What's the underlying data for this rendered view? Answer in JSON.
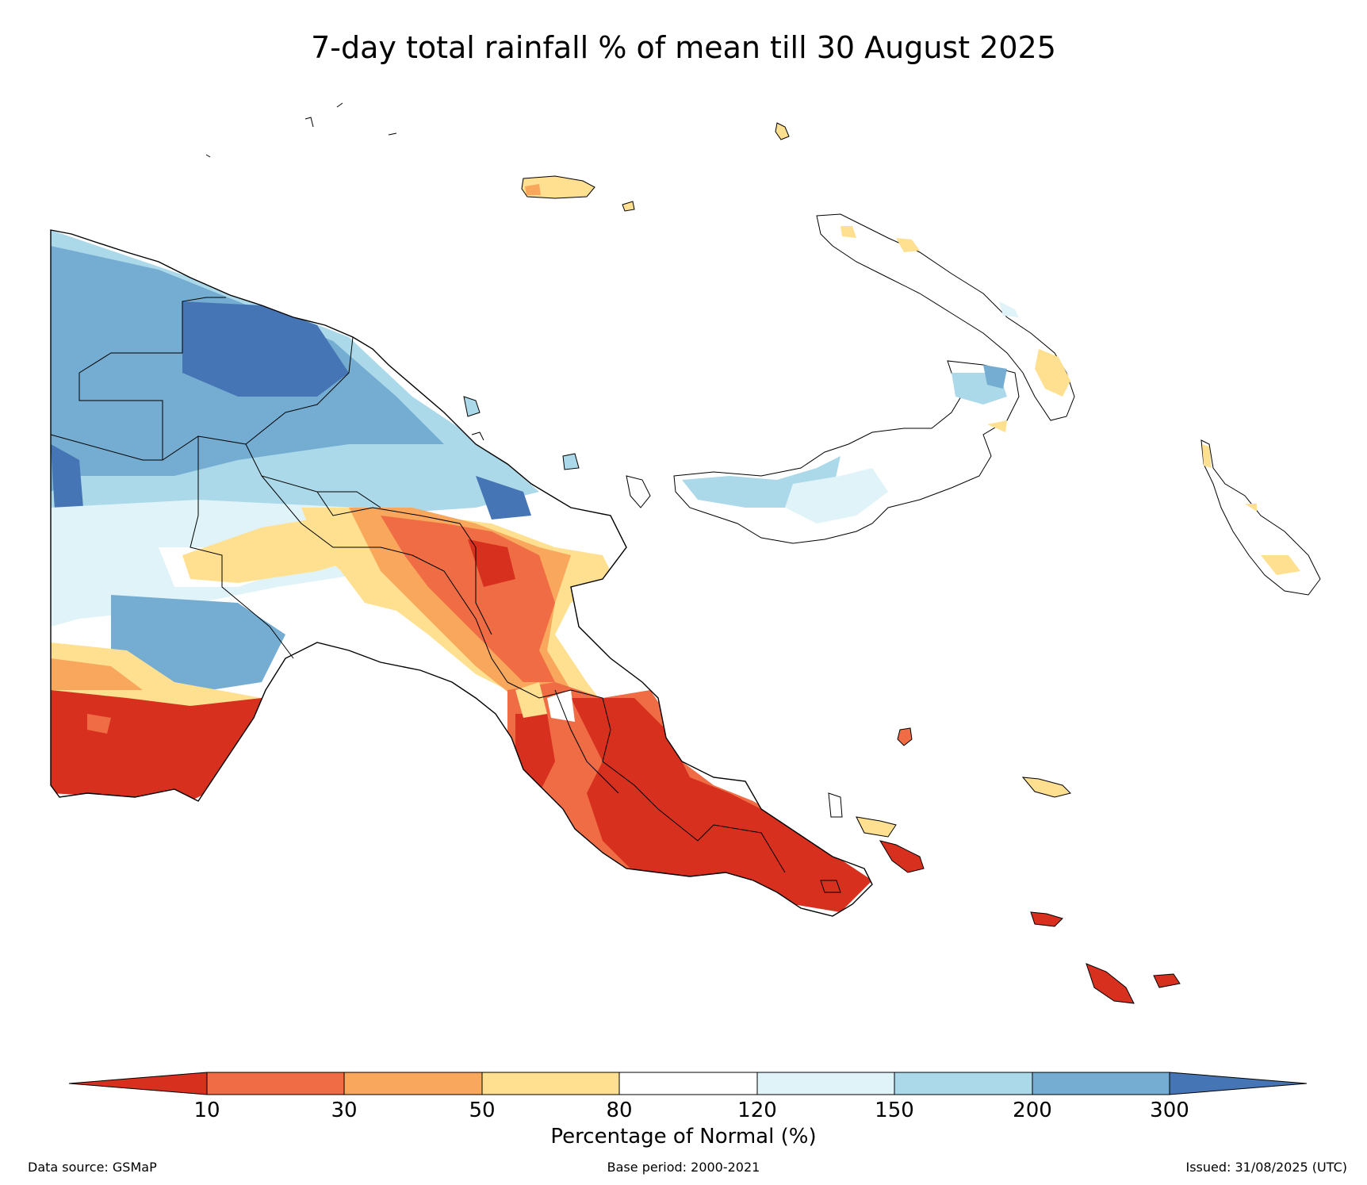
{
  "map": {
    "title": "7-day total rainfall % of mean till 30 August 2025",
    "region": "Papua New Guinea"
  },
  "legend": {
    "title": "Percentage of Normal (%)",
    "ticks": [
      "10",
      "30",
      "50",
      "80",
      "120",
      "150",
      "200",
      "300"
    ],
    "colors": {
      "under_10": "#d7301f",
      "10_30": "#ef6c44",
      "30_50": "#f8a75c",
      "50_80": "#fee090",
      "80_120": "#ffffff",
      "120_150": "#e0f3f8",
      "150_200": "#abd9e9",
      "200_300": "#74add1",
      "over_300": "#4575b4"
    }
  },
  "footer": {
    "source": "Data source: GSMaP",
    "base_period": "Base period: 2000-2021",
    "issued": "Issued: 31/08/2025 (UTC)"
  }
}
